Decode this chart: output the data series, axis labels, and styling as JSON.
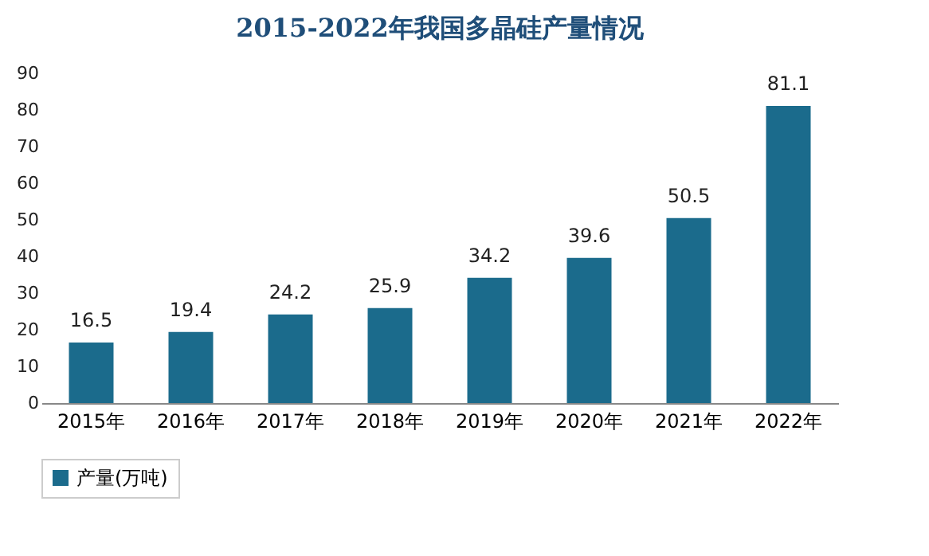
{
  "chart_data": {
    "type": "bar",
    "title": "2015-2022年我国多晶硅产量情况",
    "categories": [
      "2015年",
      "2016年",
      "2017年",
      "2018年",
      "2019年",
      "2020年",
      "2021年",
      "2022年"
    ],
    "series": [
      {
        "name": "产量(万吨)",
        "color": "#1b6b8c",
        "values": [
          16.5,
          19.4,
          24.2,
          25.9,
          34.2,
          39.6,
          50.5,
          81.1
        ]
      }
    ],
    "ylim": [
      0,
      90
    ],
    "yticks": [
      0,
      10,
      20,
      30,
      40,
      50,
      60,
      70,
      80,
      90
    ],
    "grid": false,
    "legend": "bottom",
    "data_labels": true
  }
}
